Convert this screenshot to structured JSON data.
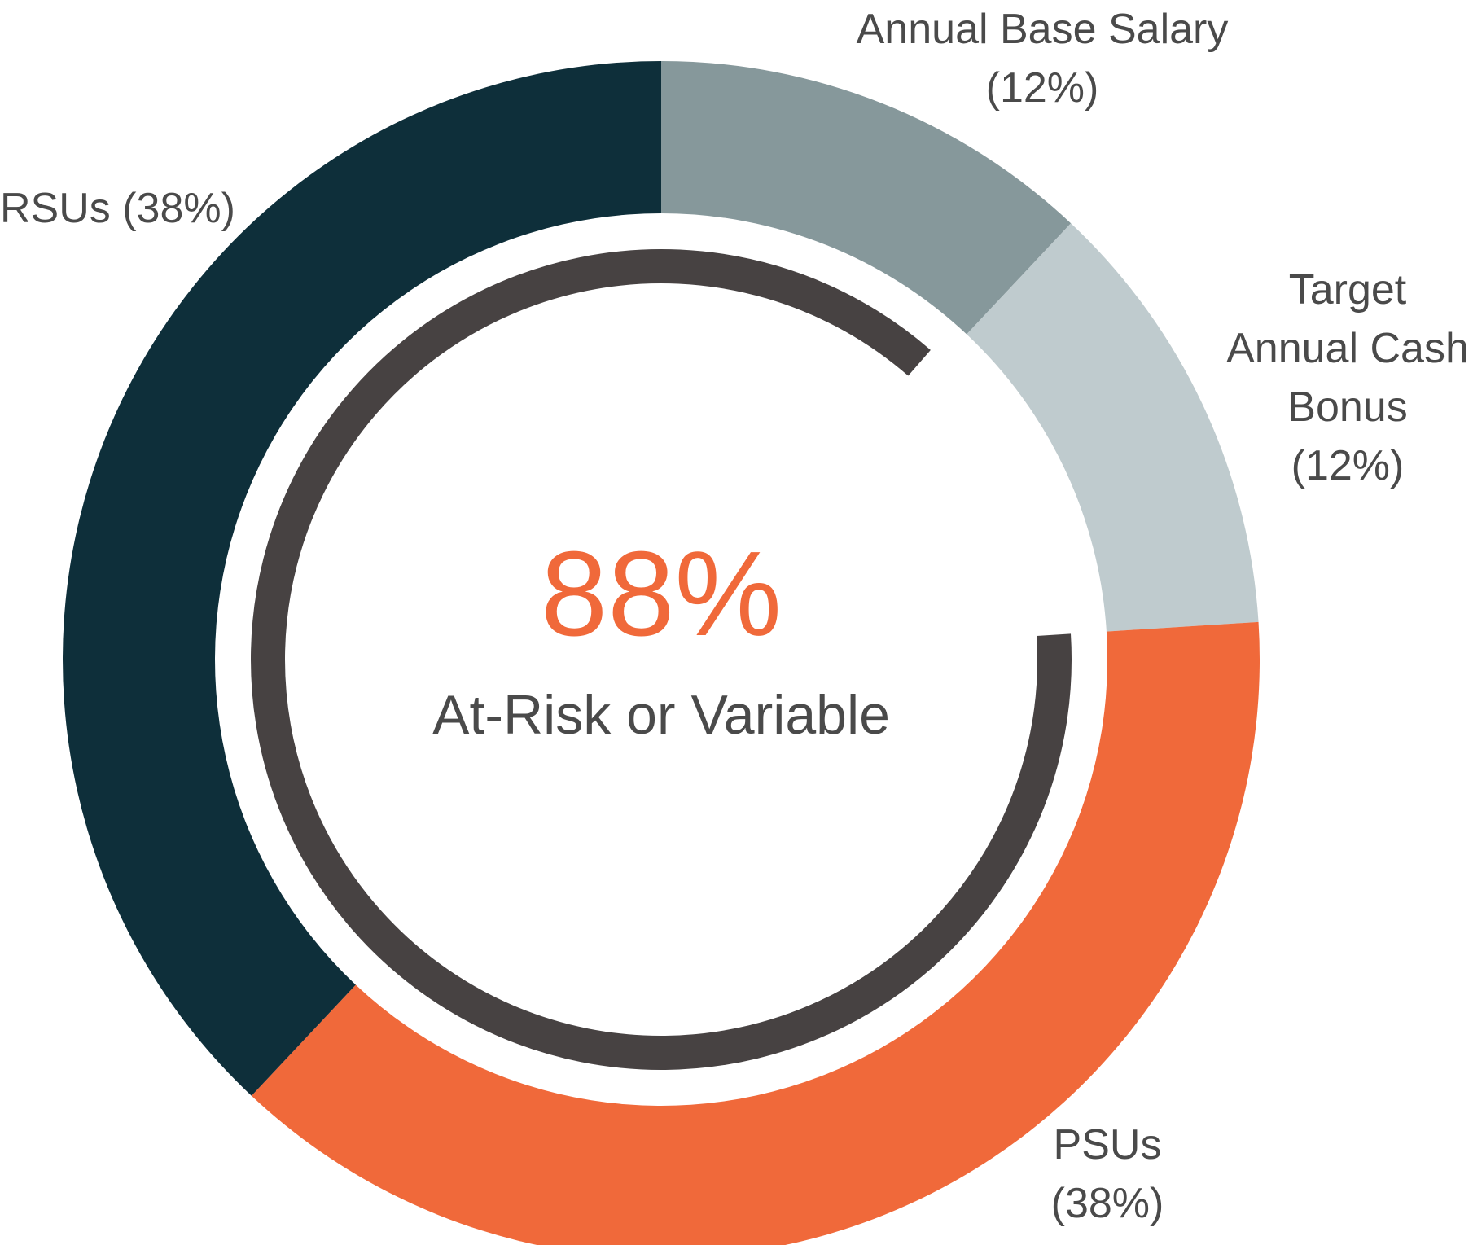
{
  "chart_data": {
    "type": "pie",
    "donut": true,
    "segments": [
      {
        "label_lines": [
          "Annual Base Salary",
          "(12%)"
        ],
        "value": 12,
        "color": "#86989b"
      },
      {
        "label_lines": [
          "Target",
          "Annual Cash",
          "Bonus",
          "(12%)"
        ],
        "value": 12,
        "color": "#bfcbce"
      },
      {
        "label_lines": [
          "PSUs",
          "(38%)"
        ],
        "value": 38,
        "color": "#f0693a"
      },
      {
        "label_lines": [
          "RSUs (38%)"
        ],
        "value": 38,
        "color": "#0e2f3a"
      }
    ],
    "inner_arc": {
      "value": 88,
      "color": "#474242"
    },
    "center": {
      "value_text": "88%",
      "subtitle": "At-Risk or Variable",
      "value_color": "#f0693a"
    }
  }
}
